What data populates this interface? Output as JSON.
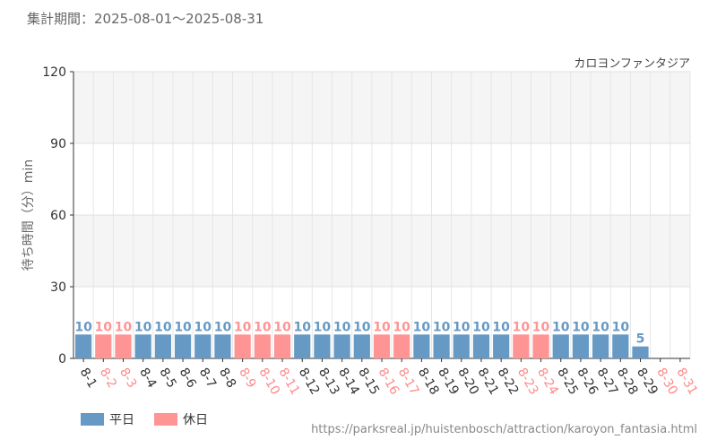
{
  "period_text": "集計期間：2025-08-01～2025-08-31",
  "attraction_name": "カロヨンファンタジア",
  "source_url": "https://parksreal.jp/huistenbosch/attraction/karoyon_fantasia.html",
  "legend": {
    "weekday": {
      "label": "平日",
      "color": "#6699c4"
    },
    "holiday": {
      "label": "休日",
      "color": "#ff9494"
    }
  },
  "chart_data": {
    "type": "bar",
    "title": "",
    "xlabel": "",
    "ylabel": "待ち時間（分）min",
    "ylim": [
      0,
      120
    ],
    "yticks": [
      0,
      30,
      60,
      90,
      120
    ],
    "grid": true,
    "legend_position": "bottom-left",
    "categories": [
      "8-1",
      "8-2",
      "8-3",
      "8-4",
      "8-5",
      "8-6",
      "8-7",
      "8-8",
      "8-9",
      "8-10",
      "8-11",
      "8-12",
      "8-13",
      "8-14",
      "8-15",
      "8-16",
      "8-17",
      "8-18",
      "8-19",
      "8-20",
      "8-21",
      "8-22",
      "8-23",
      "8-24",
      "8-25",
      "8-26",
      "8-27",
      "8-28",
      "8-29",
      "8-30",
      "8-31"
    ],
    "values": [
      10,
      10,
      10,
      10,
      10,
      10,
      10,
      10,
      10,
      10,
      10,
      10,
      10,
      10,
      10,
      10,
      10,
      10,
      10,
      10,
      10,
      10,
      10,
      10,
      10,
      10,
      10,
      10,
      5,
      null,
      null
    ],
    "day_type": [
      "weekday",
      "holiday",
      "holiday",
      "weekday",
      "weekday",
      "weekday",
      "weekday",
      "weekday",
      "holiday",
      "holiday",
      "holiday",
      "weekday",
      "weekday",
      "weekday",
      "weekday",
      "holiday",
      "holiday",
      "weekday",
      "weekday",
      "weekday",
      "weekday",
      "weekday",
      "holiday",
      "holiday",
      "weekday",
      "weekday",
      "weekday",
      "weekday",
      "weekday",
      "holiday",
      "holiday"
    ]
  }
}
